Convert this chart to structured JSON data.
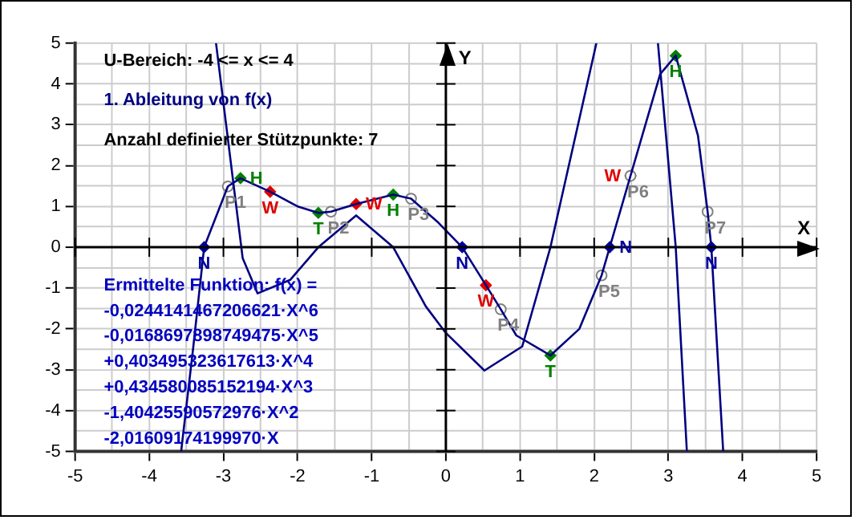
{
  "chart_data": {
    "type": "line",
    "xlabel": "X",
    "ylabel": "Y",
    "xlim": [
      -5,
      5
    ],
    "ylim": [
      -5,
      5
    ],
    "xticks": [
      -5,
      {
        "value": -4.5,
        "label": null
      },
      -4,
      {
        "value": -3.5,
        "label": null
      },
      -3,
      {
        "value": -2.5,
        "label": null
      },
      -2,
      {
        "value": -1.5,
        "label": null
      },
      -1,
      {
        "value": -0.5,
        "label": null
      },
      0,
      {
        "value": 0.5,
        "label": null
      },
      1,
      {
        "value": 1.5,
        "label": null
      },
      2,
      {
        "value": 2.5,
        "label": null
      },
      3,
      {
        "value": 3.5,
        "label": null
      },
      4,
      {
        "value": 4.5,
        "label": null
      },
      5
    ],
    "yticks": [
      -5,
      {
        "value": -4.5,
        "label": null
      },
      -4,
      {
        "value": -3.5,
        "label": null
      },
      -3,
      {
        "value": -2.5,
        "label": null
      },
      -2,
      {
        "value": -1.5,
        "label": null
      },
      -1,
      {
        "value": -0.5,
        "label": null
      },
      0,
      {
        "value": 0.5,
        "label": null
      },
      1,
      {
        "value": 1.5,
        "label": null
      },
      2,
      {
        "value": 2.5,
        "label": null
      },
      3,
      {
        "value": 3.5,
        "label": null
      },
      4,
      {
        "value": 4.5,
        "label": null
      },
      5
    ],
    "grid": true,
    "legend": false,
    "series": [
      {
        "type": "line",
        "color": "#000080",
        "x": [
          -3.57,
          -3.41,
          -3.26,
          -2.94,
          -2.77,
          -2.37,
          -2.0,
          -1.72,
          -1.55,
          -1.21,
          -0.71,
          -0.47,
          -0.1,
          0.22,
          0.54,
          0.74,
          0.95,
          1.41,
          1.8,
          2.1,
          2.21,
          2.49,
          2.89,
          3.1,
          3.4,
          3.53,
          3.58,
          3.74
        ],
        "values": [
          -5,
          -2.5,
          0,
          1.49,
          1.69,
          1.36,
          1.0,
          0.84,
          0.87,
          1.06,
          1.29,
          1.19,
          0.6,
          0,
          -0.93,
          -1.52,
          -2.16,
          -2.65,
          -2.0,
          -0.69,
          0,
          1.75,
          4.24,
          4.69,
          2.73,
          0.87,
          0,
          -5
        ]
      },
      {
        "type": "line",
        "color": "#000080",
        "x": [
          -3.1,
          -2.74,
          -2.54,
          -2.1,
          -1.72,
          -1.21,
          -0.71,
          -0.27,
          0,
          0.52,
          1.03,
          1.41,
          2.03
        ],
        "values": [
          5,
          -0.27,
          -1.13,
          -0.8,
          0,
          0.78,
          0,
          -1.45,
          -2.1,
          -3.02,
          -2.43,
          0,
          5
        ]
      },
      {
        "type": "line",
        "color": "#000080",
        "x": [
          2.86,
          3.1,
          3.25
        ],
        "values": [
          5,
          0,
          -5
        ]
      },
      {
        "type": "scatter",
        "color": "#008000",
        "marker": "diamond",
        "x": [
          -2.77,
          -0.71,
          3.1
        ],
        "values": [
          1.69,
          1.29,
          4.69
        ],
        "value_labels": [
          "H",
          "H",
          "H"
        ]
      },
      {
        "type": "scatter",
        "color": "#008000",
        "marker": "diamond",
        "x": [
          -1.72,
          1.41
        ],
        "values": [
          0.84,
          -2.65
        ],
        "value_labels": [
          "T",
          "T"
        ]
      },
      {
        "type": "scatter",
        "color": "#808080",
        "marker": "circle",
        "x": [
          -2.94,
          -1.55,
          -0.47,
          0.74,
          2.1,
          2.49,
          3.53
        ],
        "values": [
          1.49,
          0.87,
          1.19,
          -1.52,
          -0.69,
          1.75,
          0.87
        ],
        "value_labels": [
          "P1",
          "P2",
          "P3",
          "P4",
          "P5",
          "P6",
          "P7"
        ]
      },
      {
        "type": "scatter",
        "color": "#e00000",
        "marker": "diamond",
        "x": [
          -2.37,
          -1.21,
          0.54,
          2.49
        ],
        "values": [
          1.36,
          1.06,
          -0.93,
          1.75
        ],
        "value_labels": [
          "W",
          "W",
          "W",
          "W"
        ]
      },
      {
        "type": "scatter",
        "color": "#0000a0",
        "marker": "diamond",
        "x": [
          -3.26,
          0.22,
          2.21,
          3.58
        ],
        "values": [
          0,
          0,
          0,
          0
        ],
        "value_labels": [
          "N",
          "N",
          "N",
          "N"
        ]
      }
    ],
    "annotations": [
      "U-Bereich: -4 <= x <= 4",
      "1. Ableitung von f(x)",
      "Anzahl definierter Stützpunkte: 7",
      "Ermittelte Funktion: f(x) =",
      "-0,0244141467206621·X^6",
      "-0,0168697898749475·X^5",
      "+0,403495323617613·X^4",
      "+0,434580085152194·X^3",
      "-1,40425590572976·X^2",
      "-2,01609174199970·X"
    ]
  }
}
